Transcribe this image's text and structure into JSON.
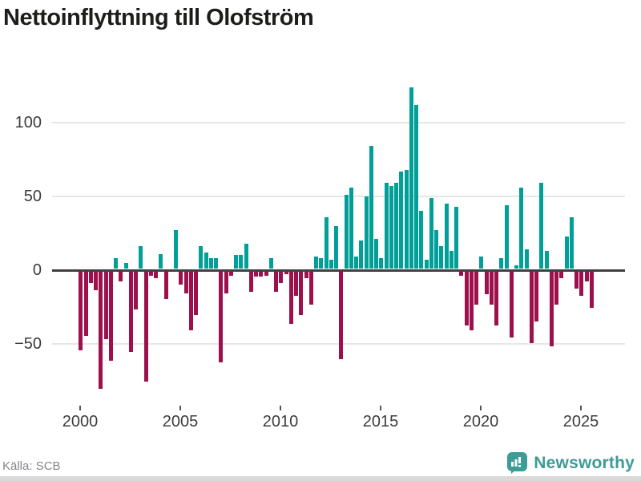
{
  "title": "Nettoinflyttning till Olofström",
  "source": "Källa: SCB",
  "brand": {
    "name": "Newsworthy",
    "logo_icon": "bar-chart-speech-bubble"
  },
  "colors": {
    "positive": "#00a099",
    "negative": "#9e104c",
    "brand": "#3d9c96",
    "zero_line": "#404040",
    "gridline": "#e6e6e6",
    "axis_text": "#3c3c3c",
    "muted_text": "#85868c",
    "bottom_strip": "#d9d9d9"
  },
  "chart_data": {
    "type": "bar",
    "title": "Nettoinflyttning till Olofström",
    "xlabel": "",
    "ylabel": "",
    "frequency": "quarterly",
    "start_period": "2000Q1",
    "end_period": "2025Q3",
    "ylim": [
      -95,
      130
    ],
    "grid": true,
    "y_ticks": [
      100,
      50,
      0,
      -50
    ],
    "y_tick_labels": [
      "100",
      "50",
      "0",
      "−50"
    ],
    "x_tick_years": [
      2000,
      2005,
      2010,
      2015,
      2020,
      2025
    ],
    "x_tick_labels": [
      "2000",
      "2005",
      "2010",
      "2015",
      "2020",
      "2025"
    ],
    "values": [
      -54,
      -44,
      -8,
      -13,
      -80,
      -46,
      -61,
      7,
      -7,
      4,
      -55,
      -26,
      15,
      -75,
      -3,
      -5,
      10,
      -19,
      0,
      26,
      -9,
      -15,
      -40,
      -30,
      15,
      11,
      7,
      7,
      -62,
      -15,
      -3,
      9,
      9,
      17,
      -14,
      -4,
      -4,
      -3,
      7,
      -14,
      -8,
      -2,
      -36,
      -17,
      -30,
      -5,
      -23,
      8,
      7,
      35,
      6,
      29,
      -60,
      50,
      55,
      8,
      19,
      49,
      83,
      20,
      7,
      58,
      56,
      58,
      66,
      67,
      123,
      111,
      39,
      6,
      48,
      26,
      15,
      44,
      12,
      42,
      -3,
      -37,
      -40,
      -23,
      8,
      -16,
      -23,
      -37,
      7,
      43,
      -45,
      2,
      55,
      13,
      -49,
      -34,
      58,
      12,
      -51,
      -23,
      -5,
      22,
      35,
      -12,
      -17,
      -7,
      -25
    ]
  }
}
